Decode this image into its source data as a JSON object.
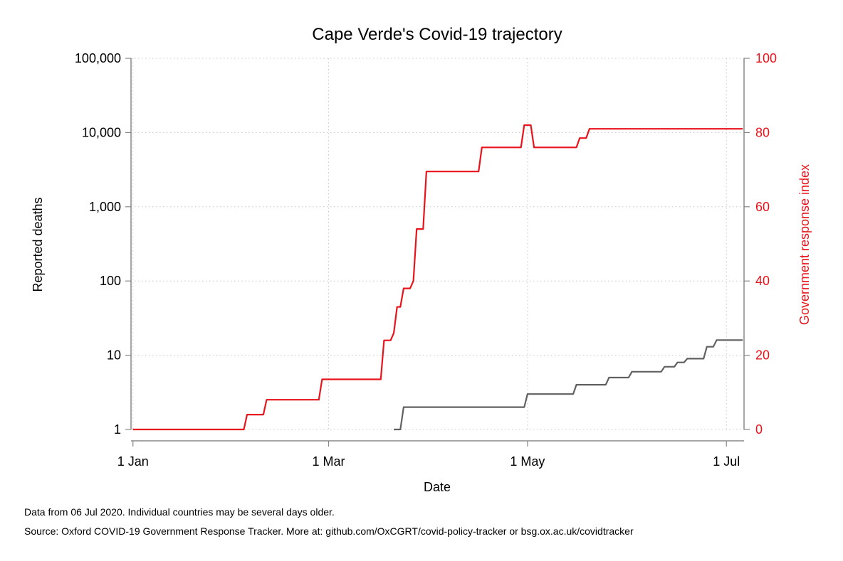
{
  "chart_data": {
    "type": "line",
    "title": "Cape Verde's Covid-19 trajectory",
    "xlabel": "Date",
    "ylabel_left": "Reported deaths",
    "ylabel_right": "Government response index",
    "x_scale": "date",
    "xlim": [
      "2020-01-01",
      "2020-07-07"
    ],
    "x_ticks": [
      {
        "date": "2020-01-01",
        "label": "1 Jan"
      },
      {
        "date": "2020-03-01",
        "label": "1 Mar"
      },
      {
        "date": "2020-05-01",
        "label": "1 May"
      },
      {
        "date": "2020-07-01",
        "label": "1 Jul"
      }
    ],
    "y_left_scale": "log",
    "y_left_lim": [
      1,
      100000
    ],
    "y_left_ticks": [
      {
        "value": 1,
        "label": "1"
      },
      {
        "value": 10,
        "label": "10"
      },
      {
        "value": 100,
        "label": "100"
      },
      {
        "value": 1000,
        "label": "1,000"
      },
      {
        "value": 10000,
        "label": "10,000"
      },
      {
        "value": 100000,
        "label": "100,000"
      }
    ],
    "y_right_lim": [
      0,
      100
    ],
    "y_right_ticks": [
      0,
      20,
      40,
      60,
      80,
      100
    ],
    "grid": true,
    "legend": "none",
    "colors": {
      "deaths": "#606060",
      "response": "#e8141c",
      "right_axis": "#e8141c",
      "axis": "#888888"
    },
    "series": [
      {
        "axis": "right",
        "color": "#e8141c",
        "points": [
          [
            "2020-01-01",
            0
          ],
          [
            "2020-02-04",
            0
          ],
          [
            "2020-02-05",
            4
          ],
          [
            "2020-02-10",
            4
          ],
          [
            "2020-02-11",
            8
          ],
          [
            "2020-02-27",
            8
          ],
          [
            "2020-02-28",
            13.5
          ],
          [
            "2020-03-17",
            13.5
          ],
          [
            "2020-03-18",
            24
          ],
          [
            "2020-03-20",
            24
          ],
          [
            "2020-03-21",
            26
          ],
          [
            "2020-03-22",
            33
          ],
          [
            "2020-03-23",
            33
          ],
          [
            "2020-03-24",
            38
          ],
          [
            "2020-03-26",
            38
          ],
          [
            "2020-03-27",
            40
          ],
          [
            "2020-03-28",
            54
          ],
          [
            "2020-03-30",
            54
          ],
          [
            "2020-03-31",
            69.5
          ],
          [
            "2020-04-16",
            69.5
          ],
          [
            "2020-04-17",
            76
          ],
          [
            "2020-04-29",
            76
          ],
          [
            "2020-04-30",
            82
          ],
          [
            "2020-05-02",
            82
          ],
          [
            "2020-05-03",
            76
          ],
          [
            "2020-05-16",
            76
          ],
          [
            "2020-05-17",
            78.5
          ],
          [
            "2020-05-19",
            78.5
          ],
          [
            "2020-05-20",
            81
          ],
          [
            "2020-07-06",
            81
          ]
        ]
      },
      {
        "axis": "left",
        "color": "#606060",
        "points": [
          [
            "2020-03-21",
            1
          ],
          [
            "2020-03-23",
            1
          ],
          [
            "2020-03-24",
            2
          ],
          [
            "2020-04-30",
            2
          ],
          [
            "2020-05-01",
            3
          ],
          [
            "2020-05-15",
            3
          ],
          [
            "2020-05-16",
            4
          ],
          [
            "2020-05-25",
            4
          ],
          [
            "2020-05-26",
            5
          ],
          [
            "2020-06-01",
            5
          ],
          [
            "2020-06-02",
            6
          ],
          [
            "2020-06-11",
            6
          ],
          [
            "2020-06-12",
            7
          ],
          [
            "2020-06-15",
            7
          ],
          [
            "2020-06-16",
            8
          ],
          [
            "2020-06-18",
            8
          ],
          [
            "2020-06-19",
            9
          ],
          [
            "2020-06-24",
            9
          ],
          [
            "2020-06-25",
            13
          ],
          [
            "2020-06-27",
            13
          ],
          [
            "2020-06-28",
            16
          ],
          [
            "2020-07-06",
            16
          ]
        ]
      }
    ]
  },
  "notes": {
    "data_date": "Data from 06 Jul 2020. Individual countries may be several days older.",
    "source": "Source: Oxford COVID-19 Government Response Tracker. More at: github.com/OxCGRT/covid-policy-tracker or bsg.ox.ac.uk/covidtracker"
  }
}
